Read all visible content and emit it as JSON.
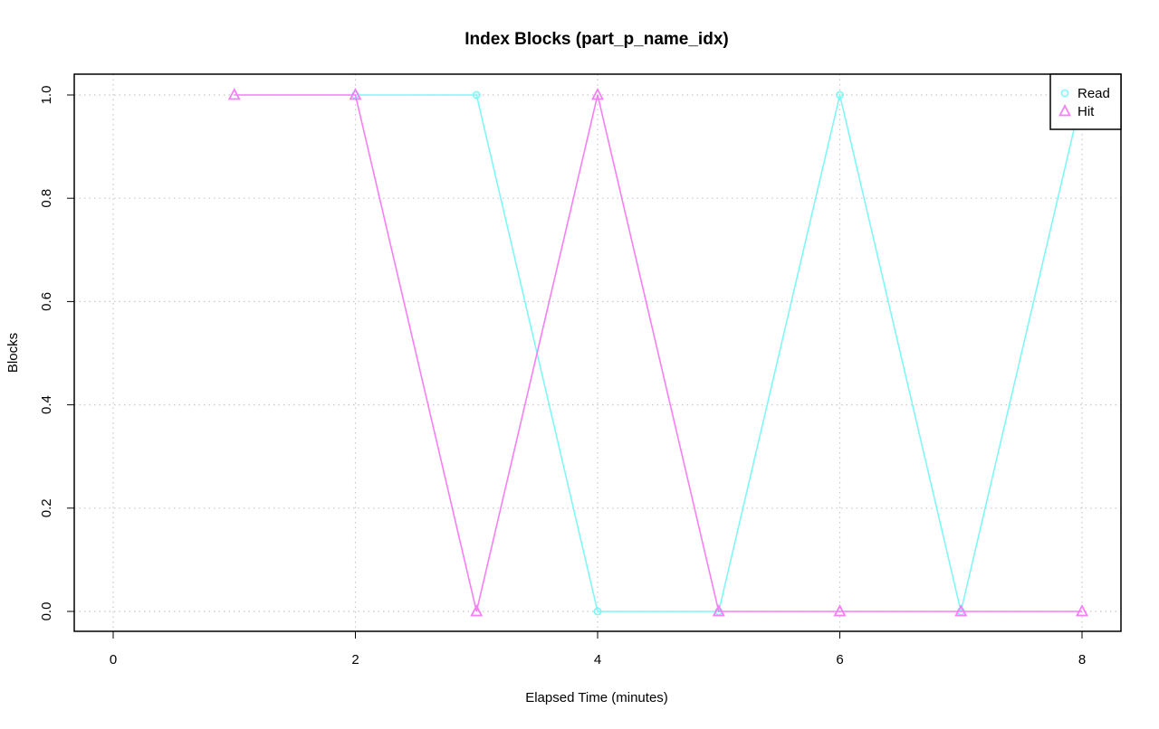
{
  "chart_data": {
    "type": "line",
    "title": "Index Blocks (part_p_name_idx)",
    "xlabel": "Elapsed Time (minutes)",
    "ylabel": "Blocks",
    "xlim": [
      0,
      8
    ],
    "ylim": [
      0,
      1
    ],
    "x_ticks": [
      0,
      2,
      4,
      6,
      8
    ],
    "x_tick_labels": [
      "0",
      "2",
      "4",
      "6",
      "8"
    ],
    "y_ticks": [
      0,
      0.2,
      0.4,
      0.6,
      0.8,
      1.0
    ],
    "y_tick_labels": [
      "0.0",
      "0.2",
      "0.4",
      "0.6",
      "0.8",
      "1.0"
    ],
    "grid": true,
    "legend_position": "top-right",
    "series": [
      {
        "name": "Read",
        "color": "#7ff7f7",
        "marker": "circle",
        "x": [
          2,
          3,
          4,
          5,
          6,
          7,
          8
        ],
        "y": [
          1,
          1,
          0,
          0,
          1,
          0,
          1
        ]
      },
      {
        "name": "Hit",
        "color": "#f57ff5",
        "marker": "triangle",
        "x": [
          1,
          2,
          3,
          4,
          5,
          6,
          7,
          8
        ],
        "y": [
          1,
          1,
          0,
          1,
          0,
          0,
          0,
          0
        ]
      }
    ]
  }
}
